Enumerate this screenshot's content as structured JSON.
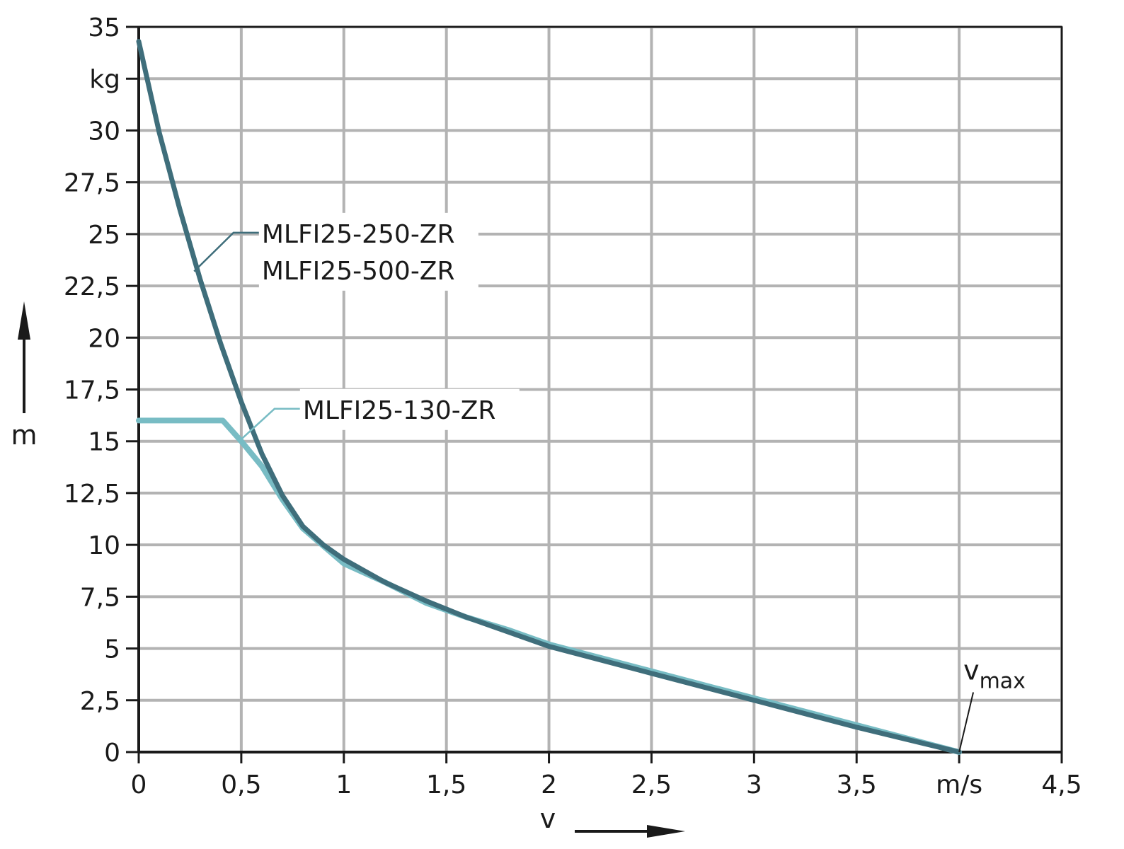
{
  "chart_data": {
    "type": "line",
    "xlabel": "v",
    "ylabel": "m",
    "x_unit": "m/s",
    "y_unit": "kg",
    "xlim": [
      0,
      4.5
    ],
    "ylim": [
      0,
      35
    ],
    "grid": true,
    "x_ticks": [
      {
        "value": 0,
        "label": "0"
      },
      {
        "value": 0.5,
        "label": "0,5"
      },
      {
        "value": 1,
        "label": "1"
      },
      {
        "value": 1.5,
        "label": "1,5"
      },
      {
        "value": 2,
        "label": "2"
      },
      {
        "value": 2.5,
        "label": "2,5"
      },
      {
        "value": 3,
        "label": "3"
      },
      {
        "value": 3.5,
        "label": "3,5"
      },
      {
        "value": 4,
        "label": "m/s"
      },
      {
        "value": 4.5,
        "label": "4,5"
      }
    ],
    "y_ticks": [
      {
        "value": 0,
        "label": "0"
      },
      {
        "value": 2.5,
        "label": "2,5"
      },
      {
        "value": 5,
        "label": "5"
      },
      {
        "value": 7.5,
        "label": "7,5"
      },
      {
        "value": 10,
        "label": "10"
      },
      {
        "value": 12.5,
        "label": "12,5"
      },
      {
        "value": 15,
        "label": "15"
      },
      {
        "value": 17.5,
        "label": "17,5"
      },
      {
        "value": 20,
        "label": "20"
      },
      {
        "value": 22.5,
        "label": "22,5"
      },
      {
        "value": 25,
        "label": "25"
      },
      {
        "value": 27.5,
        "label": "27,5"
      },
      {
        "value": 30,
        "label": "30"
      },
      {
        "value": 32.5,
        "label": "kg"
      },
      {
        "value": 35,
        "label": "35"
      }
    ],
    "series": [
      {
        "name": "MLFI25-130-ZR",
        "color": "#78bcc4",
        "points": [
          [
            0,
            16
          ],
          [
            0.41,
            16
          ],
          [
            0.5,
            15
          ],
          [
            0.6,
            13.8
          ],
          [
            0.7,
            12.2
          ],
          [
            0.8,
            10.8
          ],
          [
            1.0,
            9.1
          ],
          [
            1.2,
            8.2
          ],
          [
            1.4,
            7.2
          ],
          [
            1.6,
            6.5
          ],
          [
            1.8,
            5.9
          ],
          [
            2.0,
            5.2
          ],
          [
            2.5,
            3.9
          ],
          [
            3.0,
            2.6
          ],
          [
            3.5,
            1.3
          ],
          [
            4.0,
            0
          ]
        ]
      },
      {
        "name": "MLFI25-250-ZR\nMLFI25-500-ZR",
        "color": "#3f6e7b",
        "points": [
          [
            0,
            34.3
          ],
          [
            0.1,
            29.9
          ],
          [
            0.2,
            26.2
          ],
          [
            0.3,
            22.8
          ],
          [
            0.4,
            19.7
          ],
          [
            0.5,
            16.9
          ],
          [
            0.6,
            14.4
          ],
          [
            0.7,
            12.4
          ],
          [
            0.8,
            10.9
          ],
          [
            0.9,
            10.0
          ],
          [
            1.0,
            9.3
          ],
          [
            1.2,
            8.2
          ],
          [
            1.4,
            7.3
          ],
          [
            1.6,
            6.5
          ],
          [
            1.8,
            5.8
          ],
          [
            2.0,
            5.1
          ],
          [
            2.5,
            3.8
          ],
          [
            3.0,
            2.5
          ],
          [
            3.5,
            1.2
          ],
          [
            4.0,
            0
          ]
        ]
      }
    ],
    "annotations": [
      {
        "id": "label-250-500",
        "lines": [
          "MLFI25-250-ZR",
          "MLFI25-500-ZR"
        ],
        "pointer_at": [
          0.27,
          23.2
        ],
        "text_at": [
          0.6,
          25
        ]
      },
      {
        "id": "label-130",
        "lines": [
          "MLFI25-130-ZR"
        ],
        "pointer_at": [
          0.5,
          15.1
        ],
        "text_at": [
          0.8,
          16.5
        ]
      },
      {
        "id": "label-vmax",
        "base": "v",
        "subscript": "max",
        "pointer_at": [
          4.0,
          0
        ],
        "text_at": [
          4.2,
          3.5
        ]
      }
    ]
  }
}
